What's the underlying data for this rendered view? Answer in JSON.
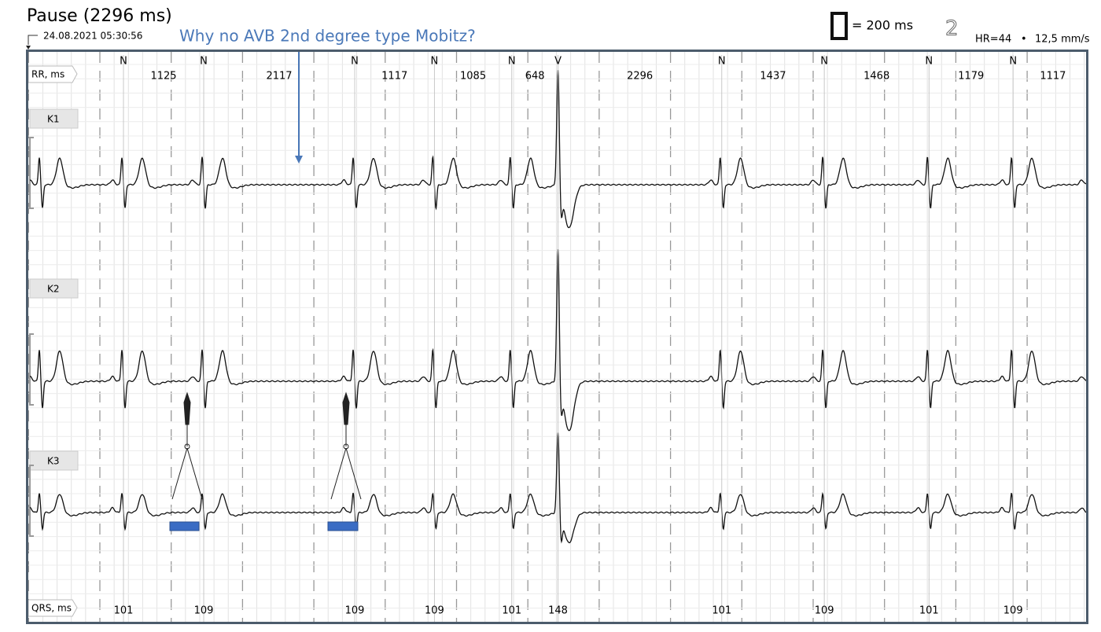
{
  "header": {
    "title": "Pause (2296 ms)",
    "timestamp": "24.08.2021 05:30:56",
    "annotation": "Why no AVB 2nd degree type Mobitz?",
    "scale_legend": "= 200 ms",
    "page_number": "2",
    "heart_rate": "HR=44",
    "separator": "•",
    "paper_speed": "12,5 mm/s"
  },
  "strip": {
    "rr_label": "RR, ms",
    "qrs_label": "QRS, ms",
    "channels": [
      "K1",
      "K2",
      "K3"
    ],
    "beats": [
      {
        "type": "N",
        "rr": 1125,
        "qrs": 101
      },
      {
        "type": "N",
        "rr": 2117,
        "qrs": 109
      },
      {
        "type": "N",
        "rr": 1117,
        "qrs": 109
      },
      {
        "type": "N",
        "rr": 1085,
        "qrs": 109
      },
      {
        "type": "N",
        "rr": 648,
        "qrs": 101
      },
      {
        "type": "V",
        "rr": 2296,
        "qrs": 148
      },
      {
        "type": "N",
        "rr": 1437,
        "qrs": 101
      },
      {
        "type": "N",
        "rr": 1468,
        "qrs": 109
      },
      {
        "type": "N",
        "rr": 1179,
        "qrs": 101
      },
      {
        "type": "N",
        "rr": 1117,
        "qrs": 109
      }
    ]
  }
}
